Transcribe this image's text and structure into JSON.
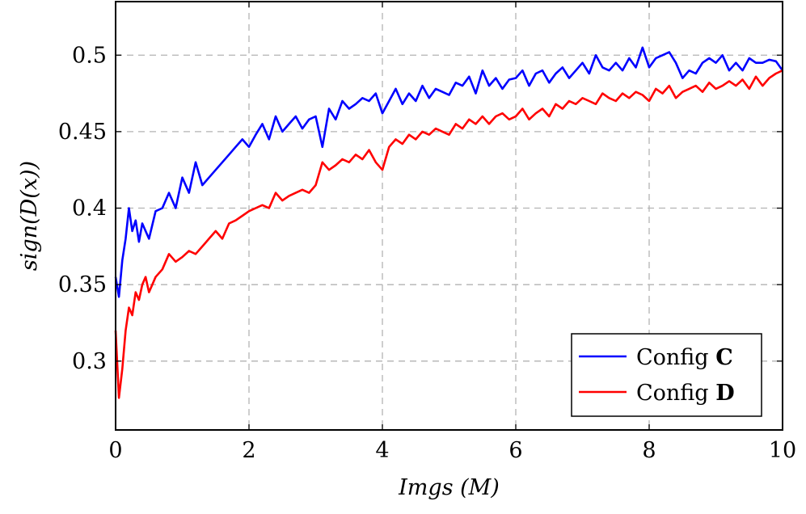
{
  "chart_data": {
    "type": "line",
    "xlabel": "Imgs (M)",
    "ylabel": "sign(D(x))",
    "xlim": [
      0,
      10
    ],
    "ylim": [
      0.255,
      0.535
    ],
    "xticks": [
      0,
      2,
      4,
      6,
      8,
      10
    ],
    "xtick_labels": [
      "0",
      "2",
      "4",
      "6",
      "8",
      "10"
    ],
    "yticks": [
      0.3,
      0.35,
      0.4,
      0.45,
      0.5
    ],
    "ytick_labels": [
      "0.3",
      "0.35",
      "0.4",
      "0.45",
      "0.5"
    ],
    "grid": true,
    "legend_position": "bottom-right",
    "series": [
      {
        "name": "Config C",
        "legend_prefix": "Config",
        "legend_bold": "C",
        "color": "#0000ff",
        "x": [
          0.0,
          0.05,
          0.1,
          0.15,
          0.2,
          0.25,
          0.3,
          0.35,
          0.4,
          0.45,
          0.5,
          0.6,
          0.7,
          0.8,
          0.9,
          1.0,
          1.1,
          1.2,
          1.3,
          1.4,
          1.5,
          1.6,
          1.7,
          1.8,
          1.9,
          2.0,
          2.1,
          2.2,
          2.3,
          2.4,
          2.5,
          2.6,
          2.7,
          2.8,
          2.9,
          3.0,
          3.1,
          3.2,
          3.3,
          3.4,
          3.5,
          3.6,
          3.7,
          3.8,
          3.9,
          4.0,
          4.1,
          4.2,
          4.3,
          4.4,
          4.5,
          4.6,
          4.7,
          4.8,
          4.9,
          5.0,
          5.1,
          5.2,
          5.3,
          5.4,
          5.5,
          5.6,
          5.7,
          5.8,
          5.9,
          6.0,
          6.1,
          6.2,
          6.3,
          6.4,
          6.5,
          6.6,
          6.7,
          6.8,
          6.9,
          7.0,
          7.1,
          7.2,
          7.3,
          7.4,
          7.5,
          7.6,
          7.7,
          7.8,
          7.9,
          8.0,
          8.1,
          8.2,
          8.3,
          8.4,
          8.5,
          8.6,
          8.7,
          8.8,
          8.9,
          9.0,
          9.1,
          9.2,
          9.3,
          9.4,
          9.5,
          9.6,
          9.7,
          9.8,
          9.9,
          10.0
        ],
        "values": [
          0.355,
          0.342,
          0.366,
          0.38,
          0.4,
          0.385,
          0.392,
          0.378,
          0.39,
          0.385,
          0.38,
          0.398,
          0.4,
          0.41,
          0.4,
          0.42,
          0.41,
          0.43,
          0.415,
          0.42,
          0.425,
          0.43,
          0.435,
          0.44,
          0.445,
          0.44,
          0.448,
          0.455,
          0.445,
          0.46,
          0.45,
          0.455,
          0.46,
          0.452,
          0.458,
          0.46,
          0.44,
          0.465,
          0.458,
          0.47,
          0.465,
          0.468,
          0.472,
          0.47,
          0.475,
          0.462,
          0.47,
          0.478,
          0.468,
          0.475,
          0.47,
          0.48,
          0.472,
          0.478,
          0.476,
          0.474,
          0.482,
          0.48,
          0.486,
          0.475,
          0.49,
          0.48,
          0.485,
          0.478,
          0.484,
          0.485,
          0.49,
          0.48,
          0.488,
          0.49,
          0.482,
          0.488,
          0.492,
          0.485,
          0.49,
          0.495,
          0.488,
          0.5,
          0.492,
          0.49,
          0.495,
          0.49,
          0.498,
          0.492,
          0.505,
          0.492,
          0.498,
          0.5,
          0.502,
          0.495,
          0.485,
          0.49,
          0.488,
          0.495,
          0.498,
          0.495,
          0.5,
          0.49,
          0.495,
          0.49,
          0.498,
          0.495,
          0.495,
          0.497,
          0.496,
          0.49
        ]
      },
      {
        "name": "Config D",
        "legend_prefix": "Config",
        "legend_bold": "D",
        "color": "#ff0000",
        "x": [
          0.0,
          0.05,
          0.1,
          0.15,
          0.2,
          0.25,
          0.3,
          0.35,
          0.4,
          0.45,
          0.5,
          0.6,
          0.7,
          0.8,
          0.9,
          1.0,
          1.1,
          1.2,
          1.3,
          1.4,
          1.5,
          1.6,
          1.7,
          1.8,
          1.9,
          2.0,
          2.1,
          2.2,
          2.3,
          2.4,
          2.5,
          2.6,
          2.7,
          2.8,
          2.9,
          3.0,
          3.1,
          3.2,
          3.3,
          3.4,
          3.5,
          3.6,
          3.7,
          3.8,
          3.9,
          4.0,
          4.1,
          4.2,
          4.3,
          4.4,
          4.5,
          4.6,
          4.7,
          4.8,
          4.9,
          5.0,
          5.1,
          5.2,
          5.3,
          5.4,
          5.5,
          5.6,
          5.7,
          5.8,
          5.9,
          6.0,
          6.1,
          6.2,
          6.3,
          6.4,
          6.5,
          6.6,
          6.7,
          6.8,
          6.9,
          7.0,
          7.1,
          7.2,
          7.3,
          7.4,
          7.5,
          7.6,
          7.7,
          7.8,
          7.9,
          8.0,
          8.1,
          8.2,
          8.3,
          8.4,
          8.5,
          8.6,
          8.7,
          8.8,
          8.9,
          9.0,
          9.1,
          9.2,
          9.3,
          9.4,
          9.5,
          9.6,
          9.7,
          9.8,
          9.9,
          10.0
        ],
        "values": [
          0.32,
          0.276,
          0.295,
          0.32,
          0.335,
          0.33,
          0.345,
          0.34,
          0.35,
          0.355,
          0.345,
          0.355,
          0.36,
          0.37,
          0.365,
          0.368,
          0.372,
          0.37,
          0.375,
          0.38,
          0.385,
          0.38,
          0.39,
          0.392,
          0.395,
          0.398,
          0.4,
          0.402,
          0.4,
          0.41,
          0.405,
          0.408,
          0.41,
          0.412,
          0.41,
          0.415,
          0.43,
          0.425,
          0.428,
          0.432,
          0.43,
          0.435,
          0.432,
          0.438,
          0.43,
          0.425,
          0.44,
          0.445,
          0.442,
          0.448,
          0.445,
          0.45,
          0.448,
          0.452,
          0.45,
          0.448,
          0.455,
          0.452,
          0.458,
          0.455,
          0.46,
          0.455,
          0.46,
          0.462,
          0.458,
          0.46,
          0.465,
          0.458,
          0.462,
          0.465,
          0.46,
          0.468,
          0.465,
          0.47,
          0.468,
          0.472,
          0.47,
          0.468,
          0.475,
          0.472,
          0.47,
          0.475,
          0.472,
          0.476,
          0.474,
          0.47,
          0.478,
          0.475,
          0.48,
          0.472,
          0.476,
          0.478,
          0.48,
          0.476,
          0.482,
          0.478,
          0.48,
          0.483,
          0.48,
          0.484,
          0.478,
          0.486,
          0.48,
          0.485,
          0.488,
          0.49
        ]
      }
    ]
  }
}
